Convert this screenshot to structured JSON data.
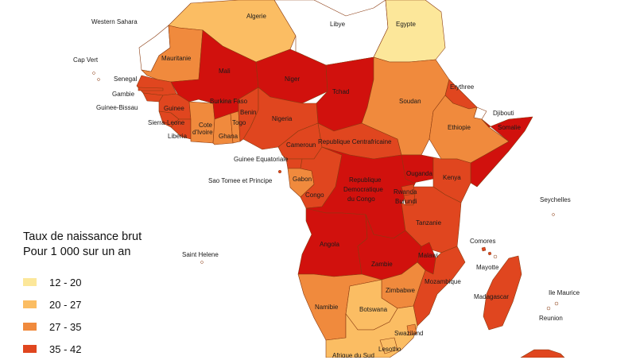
{
  "legend": {
    "title_line1": "Taux de naissance brut",
    "title_line2": "Pour 1 000 sur un an",
    "classes": [
      {
        "label": "12 - 20",
        "color": "#fce79a"
      },
      {
        "label": "20 - 27",
        "color": "#fbbd63"
      },
      {
        "label": "27 - 35",
        "color": "#f08a3d"
      },
      {
        "label": "35 - 42",
        "color": "#e0461f"
      }
    ],
    "top_class_color": "#d1110d"
  },
  "countries": [
    {
      "id": "western-sahara",
      "name": "Western Sahara",
      "class": "none"
    },
    {
      "id": "cap-vert",
      "name": "Cap Vert",
      "class": "none"
    },
    {
      "id": "algerie",
      "name": "Algerie",
      "class": 1
    },
    {
      "id": "libye",
      "name": "Libye",
      "class": "none"
    },
    {
      "id": "egypte",
      "name": "Egypte",
      "class": 0
    },
    {
      "id": "mauritanie",
      "name": "Mauritanie",
      "class": 2
    },
    {
      "id": "mali",
      "name": "Mali",
      "class": 4
    },
    {
      "id": "niger",
      "name": "Niger",
      "class": 4
    },
    {
      "id": "tchad",
      "name": "Tchad",
      "class": 4
    },
    {
      "id": "senegal",
      "name": "Senegal",
      "class": 3
    },
    {
      "id": "gambie",
      "name": "Gambie",
      "class": 3
    },
    {
      "id": "guinee-bissau",
      "name": "Guinee-Bissau",
      "class": 3
    },
    {
      "id": "guinee",
      "name": "Guinee",
      "class": 3
    },
    {
      "id": "sierra-leone",
      "name": "Sierra-Leone",
      "class": 3
    },
    {
      "id": "liberia",
      "name": "Liberia",
      "class": 3
    },
    {
      "id": "cote-divoire",
      "name": "Cote d'Ivoire",
      "class": 2
    },
    {
      "id": "burkina-faso",
      "name": "Burkina Faso",
      "class": 4
    },
    {
      "id": "ghana",
      "name": "Ghana",
      "class": 2
    },
    {
      "id": "togo",
      "name": "Togo",
      "class": 2
    },
    {
      "id": "benin",
      "name": "Benin",
      "class": 3
    },
    {
      "id": "nigeria",
      "name": "Nigeria",
      "class": 3
    },
    {
      "id": "cameroun",
      "name": "Cameroun",
      "class": 3
    },
    {
      "id": "republique-centrafricaine",
      "name": "Republique Centrafricaine",
      "class": 3
    },
    {
      "id": "soudan",
      "name": "Soudan",
      "class": 2
    },
    {
      "id": "erythree",
      "name": "Erythree",
      "class": 3
    },
    {
      "id": "djibouti",
      "name": "Djibouti",
      "class": "none"
    },
    {
      "id": "ethiopie",
      "name": "Ethiopie",
      "class": 2
    },
    {
      "id": "somalie",
      "name": "Somalie",
      "class": 4
    },
    {
      "id": "guinee-equatoriale",
      "name": "Guinee Equatoriale",
      "class": 3
    },
    {
      "id": "sao-tome",
      "name": "Sao Tomee et Principe",
      "class": 3
    },
    {
      "id": "gabon",
      "name": "Gabon",
      "class": 2
    },
    {
      "id": "congo",
      "name": "Congo",
      "class": 3
    },
    {
      "id": "rdc",
      "name": "Republique Democratique du Congo",
      "class": 4
    },
    {
      "id": "ouganda",
      "name": "Ouganda",
      "class": 4
    },
    {
      "id": "kenya",
      "name": "Kenya",
      "class": 3
    },
    {
      "id": "rwanda",
      "name": "Rwanda",
      "class": 3
    },
    {
      "id": "burundi",
      "name": "Burundi",
      "class": 3
    },
    {
      "id": "tanzanie",
      "name": "Tanzanie",
      "class": 3
    },
    {
      "id": "seychelles",
      "name": "Seychelles",
      "class": "none"
    },
    {
      "id": "angola",
      "name": "Angola",
      "class": 4
    },
    {
      "id": "zambie",
      "name": "Zambie",
      "class": 4
    },
    {
      "id": "malawi",
      "name": "Malawi",
      "class": 4
    },
    {
      "id": "comores",
      "name": "Comores",
      "class": 3
    },
    {
      "id": "mayotte",
      "name": "Mayotte",
      "class": "none"
    },
    {
      "id": "madagascar",
      "name": "Madagascar",
      "class": 3
    },
    {
      "id": "mozambique",
      "name": "Mozambique",
      "class": 3
    },
    {
      "id": "zimbabwe",
      "name": "Zimbabwe",
      "class": 2
    },
    {
      "id": "namibie",
      "name": "Namibie",
      "class": 2
    },
    {
      "id": "botswana",
      "name": "Botswana",
      "class": 1
    },
    {
      "id": "swaziland",
      "name": "Swaziland",
      "class": 2
    },
    {
      "id": "afrique-du-sud",
      "name": "Afrique du Sud",
      "class": 1
    },
    {
      "id": "lesotho",
      "name": "Lesotho",
      "class": 1
    },
    {
      "id": "saint-helene",
      "name": "Saint Helene",
      "class": "none"
    },
    {
      "id": "ile-maurice",
      "name": "Ile Maurice",
      "class": "none"
    },
    {
      "id": "reunion",
      "name": "Reunion",
      "class": "none"
    }
  ]
}
